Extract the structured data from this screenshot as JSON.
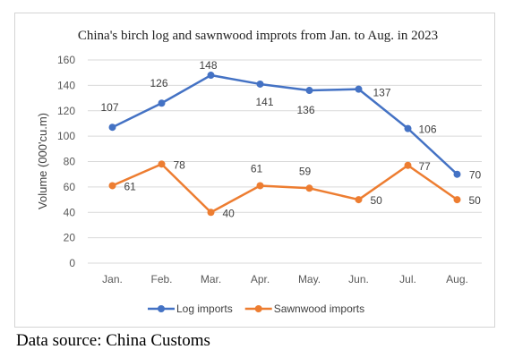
{
  "chart_data": {
    "type": "line",
    "title": "China's birch log and sawnwood improts from Jan. to Aug. in 2023",
    "xlabel": "",
    "ylabel": "Volume (000'cu.m)",
    "categories": [
      "Jan.",
      "Feb.",
      "Mar.",
      "Apr.",
      "May.",
      "Jun.",
      "Jul.",
      "Aug."
    ],
    "ylim": [
      0,
      160
    ],
    "yticks": [
      0,
      20,
      40,
      60,
      80,
      100,
      120,
      140,
      160
    ],
    "grid": true,
    "legend_position": "bottom",
    "series": [
      {
        "name": "Log imports",
        "color": "#4472C4",
        "values": [
          107,
          126,
          148,
          141,
          136,
          137,
          106,
          70
        ]
      },
      {
        "name": "Sawnwood imports",
        "color": "#ED7D31",
        "values": [
          61,
          78,
          40,
          61,
          59,
          50,
          77,
          50
        ]
      }
    ]
  },
  "source_note": "Data source: China Customs"
}
